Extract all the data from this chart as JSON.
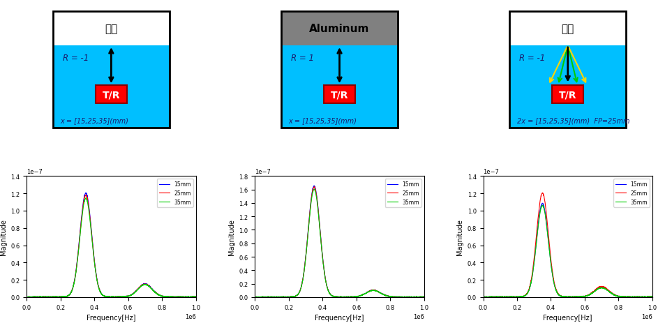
{
  "panel1": {
    "top_color": "#FFFFFF",
    "bottom_color": "#00BFFF",
    "top_label": "공기",
    "r_label": "R = -1",
    "x_label": "x = [15,25,35](mm)",
    "tr_color": "#FF0000",
    "tr_label": "T/R",
    "border_color": "#000000",
    "has_fan_arrows": false
  },
  "panel2": {
    "top_color": "#808080",
    "bottom_color": "#00BFFF",
    "top_label": "Aluminum",
    "r_label": "R = 1",
    "x_label": "x = [15,25,35](mm)",
    "tr_color": "#FF0000",
    "tr_label": "T/R",
    "border_color": "#000000",
    "has_fan_arrows": false
  },
  "panel3": {
    "top_color": "#FFFFFF",
    "bottom_color": "#00BFFF",
    "top_label": "공기",
    "r_label": "R = -1",
    "x_label": "2x = [15,25,35](mm)  FP=25mm",
    "tr_color": "#FF0000",
    "tr_label": "T/R",
    "border_color": "#000000",
    "has_fan_arrows": true
  },
  "plot_colors": {
    "15mm": "#0000FF",
    "25mm": "#FF0000",
    "35mm": "#00CC00"
  },
  "plot1": {
    "xlabel": "Frequency[Hz]",
    "ylabel": "Magnitude",
    "ylim_max": 1.4e-07,
    "xlim_max": 1000000.0,
    "peak_freq": 350000.0,
    "peak_mag": 1.2e-07,
    "secondary_peak_freq": 700000.0,
    "secondary_peak_mag": 1.5e-08
  },
  "plot2": {
    "xlabel": "Frequency[Hz]",
    "ylabel": "Magnitude",
    "ylim_max": 1.8e-07,
    "xlim_max": 1000000.0,
    "peak_freq": 350000.0,
    "peak_mag": 1.65e-07,
    "secondary_peak_freq": 700000.0,
    "secondary_peak_mag": 1e-08
  },
  "plot3": {
    "xlabel": "Frequency[Hz]",
    "ylabel": "Magnitude",
    "ylim_max": 1.4e-07,
    "xlim_max": 1000000.0,
    "peak_freq": 350000.0,
    "peak_mag": 1.2e-07,
    "secondary_peak_freq": 700000.0,
    "secondary_peak_mag": 1.2e-08
  }
}
